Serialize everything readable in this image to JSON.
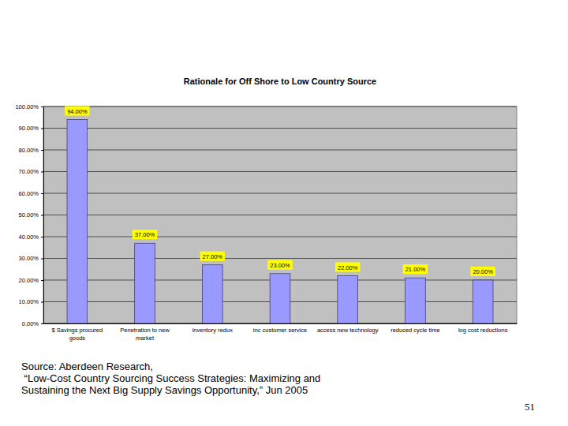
{
  "chart_data": {
    "type": "bar",
    "title": "Rationale for Off Shore to Low Country Source",
    "categories": [
      "$ Savings procured goods",
      "Penetration to new market",
      "inventory redux",
      "inc customer service",
      "access new technology",
      "reduced cycle time",
      "log cost reductions"
    ],
    "values": [
      94,
      37,
      27,
      23,
      22,
      21,
      20
    ],
    "value_labels": [
      "94.00%",
      "37.00%",
      "27.00%",
      "23.00%",
      "22.00%",
      "21.00%",
      "20.00%"
    ],
    "color": "#9999ff",
    "ylim": [
      0,
      100
    ],
    "yticks": [
      {
        "value": 0,
        "label": "0.00%"
      },
      {
        "value": 10,
        "label": "10.00%"
      },
      {
        "value": 20,
        "label": "20.00%"
      },
      {
        "value": 30,
        "label": "30.00%"
      },
      {
        "value": 40,
        "label": "40.00%"
      },
      {
        "value": 50,
        "label": "50.00%"
      },
      {
        "value": 60,
        "label": "60.00%"
      },
      {
        "value": 70,
        "label": "70.00%"
      },
      {
        "value": 80,
        "label": "80.00%"
      },
      {
        "value": 90,
        "label": "90.00%"
      },
      {
        "value": 100,
        "label": "100.00%"
      }
    ],
    "grid": true,
    "data_labels": true,
    "annotations": [
      "Source: Aberdeen Research,",
      " “Low-Cost Country Sourcing Success Strategies: Maximizing and",
      "Sustaining the Next Big Supply Savings Opportunity,” Jun 2005",
      "51"
    ]
  }
}
